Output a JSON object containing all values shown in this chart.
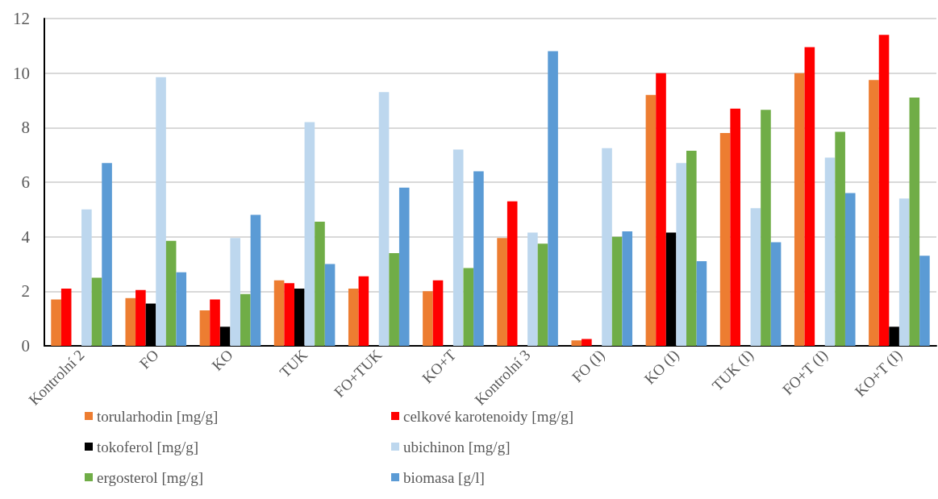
{
  "chart_data": {
    "type": "bar",
    "categories": [
      "Kontrolní 2",
      "FO",
      "KO",
      "TUK",
      "FO+TUK",
      "KO+T",
      "Kontrolní 3",
      "FO (I)",
      "KO (I)",
      "TUK (I)",
      "FO+T (I)",
      "KO+T (I)"
    ],
    "series": [
      {
        "name": "torularhodin [mg/g]",
        "color": "#ed7d31",
        "values": [
          1.7,
          1.75,
          1.3,
          2.4,
          2.1,
          2.0,
          3.95,
          0.2,
          9.2,
          7.8,
          10.0,
          9.75
        ]
      },
      {
        "name": "celkové karotenoidy [mg/g]",
        "color": "#ff0000",
        "values": [
          2.1,
          2.05,
          1.7,
          2.3,
          2.55,
          2.4,
          5.3,
          0.25,
          10.0,
          8.7,
          10.95,
          11.4
        ]
      },
      {
        "name": "tokoferol [mg/g]",
        "color": "#000000",
        "values": [
          null,
          1.55,
          0.7,
          2.1,
          null,
          null,
          null,
          null,
          4.15,
          null,
          null,
          0.7
        ]
      },
      {
        "name": "ubichinon [mg/g]",
        "color": "#bdd7ee",
        "values": [
          5.0,
          9.85,
          3.95,
          8.2,
          9.3,
          7.2,
          4.15,
          7.25,
          6.7,
          5.05,
          6.9,
          5.4
        ]
      },
      {
        "name": "ergosterol [mg/g]",
        "color": "#70ad47",
        "values": [
          2.5,
          3.85,
          1.9,
          4.55,
          3.4,
          2.85,
          3.75,
          4.0,
          7.15,
          8.65,
          7.85,
          9.1
        ]
      },
      {
        "name": "biomasa [g/l]",
        "color": "#5b9bd5",
        "values": [
          6.7,
          2.7,
          4.8,
          3.0,
          5.8,
          6.4,
          10.8,
          4.2,
          3.1,
          3.8,
          5.6,
          3.3
        ]
      }
    ],
    "ylim": [
      0,
      12
    ],
    "yticks": [
      0,
      2,
      4,
      6,
      8,
      10,
      12
    ],
    "grid": "y",
    "legend": "bottom"
  }
}
